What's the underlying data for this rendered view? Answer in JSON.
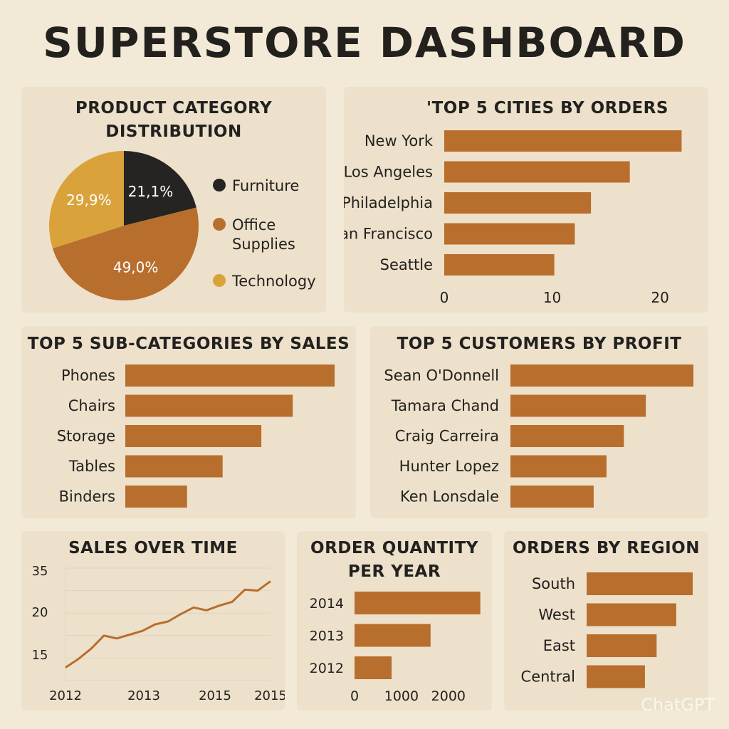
{
  "page": {
    "title": "SUPERSTORE DASHBOARD",
    "watermark": "ChatGPT"
  },
  "colors": {
    "background": "#f3e9d7",
    "panel": "#ede1cc",
    "bar": "#b86e2c",
    "furniture": "#262422",
    "office_supplies": "#b86e2c",
    "technology": "#d9a23a"
  },
  "chart_data": [
    {
      "id": "category-pie",
      "type": "pie",
      "title": "PRODUCT CATEGORY DISTRIBUTION",
      "title_lines": [
        "PRODUCT CATEGORY",
        "DISTRIBUTION"
      ],
      "slices": [
        {
          "label": "Furniture",
          "value": 21.1,
          "display": "21,1%",
          "color": "#262422"
        },
        {
          "label": "Office\nSupplies",
          "value": 49.0,
          "display": "49,0%",
          "color": "#b86e2c"
        },
        {
          "label": "Technology",
          "value": 29.9,
          "display": "29,9%",
          "color": "#d9a23a"
        }
      ],
      "legend_position": "right"
    },
    {
      "id": "top-cities",
      "type": "bar",
      "orientation": "horizontal",
      "title": "TOP 5 CITIES BY ORDERS",
      "display_title": "'TOP 5 CITIES BY ORDERS",
      "categories": [
        "New York",
        "Los Angeles",
        "Philadelphia",
        "San Francisco",
        "Seattle"
      ],
      "values": [
        22,
        17.2,
        13.6,
        12.1,
        10.2
      ],
      "xlim": [
        0,
        22.5
      ],
      "xticks": [
        "0",
        "10",
        "20"
      ],
      "xtick_values": [
        0,
        10,
        20
      ]
    },
    {
      "id": "top-subcategories",
      "type": "bar",
      "orientation": "horizontal",
      "title": "TOP 5 SUB-CATEGORIES BY SALES",
      "categories": [
        "Phones",
        "Chairs",
        "Storage",
        "Tables",
        "Binders"
      ],
      "values": [
        100,
        80,
        65,
        46.5,
        29.5
      ],
      "xlim": [
        0,
        100
      ]
    },
    {
      "id": "top-customers",
      "type": "bar",
      "orientation": "horizontal",
      "title": "TOP 5 CUSTOMERS BY PROFIT",
      "categories": [
        "Sean O'Donnell",
        "Tamara Chand",
        "Craig Carreira",
        "Hunter Lopez",
        "Ken Lonsdale"
      ],
      "values": [
        100,
        74,
        62,
        52.5,
        45.5
      ],
      "xlim": [
        0,
        100
      ]
    },
    {
      "id": "sales-over-time",
      "type": "line",
      "title": "SALES OVER TIME",
      "yticks": [
        "35",
        "20",
        "15"
      ],
      "xticks": [
        "2012",
        "2013",
        "2015",
        "2015"
      ],
      "values": [
        15.9,
        16.8,
        17.9,
        19.3,
        19.0,
        19.4,
        19.8,
        20.5,
        20.8,
        21.6,
        22.3,
        22.0,
        22.5,
        22.9,
        24.2,
        24.1,
        25.1
      ],
      "ylim": [
        14.5,
        26.5
      ]
    },
    {
      "id": "order-quantity",
      "type": "bar",
      "orientation": "horizontal",
      "title": "ORDER QUANTITY PER YEAR",
      "title_lines": [
        "ORDER QUANTITY",
        "PER YEAR"
      ],
      "categories": [
        "2014",
        "2013",
        "2012"
      ],
      "values": [
        2680,
        1620,
        790
      ],
      "xlim": [
        0,
        2700
      ],
      "xticks": [
        "0",
        "1000",
        "2000"
      ],
      "xtick_values": [
        0,
        1000,
        2000
      ]
    },
    {
      "id": "orders-by-region",
      "type": "bar",
      "orientation": "horizontal",
      "title": "ORDERS BY REGION",
      "categories": [
        "South",
        "West",
        "East",
        "Central"
      ],
      "values": [
        100,
        84.5,
        66,
        55
      ],
      "xlim": [
        0,
        100
      ]
    }
  ]
}
